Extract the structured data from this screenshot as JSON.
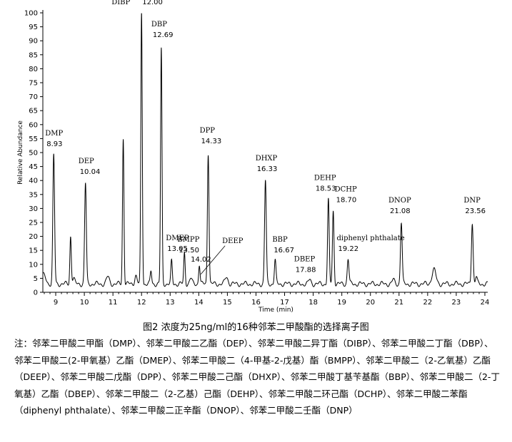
{
  "chart_data": {
    "type": "line",
    "xlabel": "Time (min)",
    "ylabel": "Relative Abundance",
    "xlim": [
      8.55,
      24.1
    ],
    "ylim": [
      0,
      100
    ],
    "xticks": [
      9,
      10,
      11,
      12,
      13,
      14,
      15,
      16,
      17,
      18,
      19,
      20,
      21,
      22,
      23,
      24
    ],
    "yticks": [
      0,
      5,
      10,
      15,
      20,
      25,
      30,
      35,
      40,
      45,
      50,
      55,
      60,
      65,
      70,
      75,
      80,
      85,
      90,
      95,
      100
    ],
    "grid": false,
    "baseline": 3,
    "peaks": [
      {
        "x": 8.93,
        "y": 49,
        "width": 0.03
      },
      {
        "x": 9.52,
        "y": 20,
        "width": 0.025
      },
      {
        "x": 9.62,
        "y": 5,
        "width": 0.04
      },
      {
        "x": 10.04,
        "y": 39,
        "width": 0.03
      },
      {
        "x": 10.82,
        "y": 5.5,
        "width": 0.05
      },
      {
        "x": 11.36,
        "y": 55,
        "width": 0.025
      },
      {
        "x": 11.8,
        "y": 6,
        "width": 0.04
      },
      {
        "x": 12.0,
        "y": 100,
        "width": 0.025
      },
      {
        "x": 12.33,
        "y": 7.5,
        "width": 0.025
      },
      {
        "x": 12.69,
        "y": 87,
        "width": 0.025
      },
      {
        "x": 13.05,
        "y": 11,
        "width": 0.025
      },
      {
        "x": 13.5,
        "y": 14,
        "width": 0.025
      },
      {
        "x": 13.72,
        "y": 5,
        "width": 0.04
      },
      {
        "x": 14.02,
        "y": 10,
        "width": 0.025
      },
      {
        "x": 14.33,
        "y": 50,
        "width": 0.028
      },
      {
        "x": 14.97,
        "y": 5.5,
        "width": 0.05
      },
      {
        "x": 16.33,
        "y": 40,
        "width": 0.03
      },
      {
        "x": 16.67,
        "y": 11.5,
        "width": 0.028
      },
      {
        "x": 17.88,
        "y": 4.5,
        "width": 0.04
      },
      {
        "x": 18.53,
        "y": 33,
        "width": 0.028
      },
      {
        "x": 18.7,
        "y": 29,
        "width": 0.028
      },
      {
        "x": 19.22,
        "y": 12,
        "width": 0.03
      },
      {
        "x": 20.8,
        "y": 4.5,
        "width": 0.04
      },
      {
        "x": 21.08,
        "y": 25,
        "width": 0.03
      },
      {
        "x": 22.22,
        "y": 8,
        "width": 0.07
      },
      {
        "x": 23.56,
        "y": 25,
        "width": 0.03
      },
      {
        "x": 23.7,
        "y": 5.5,
        "width": 0.03
      }
    ],
    "annotations": [
      {
        "name": "DMP",
        "rt": "8.93",
        "x": 8.93,
        "y": 49
      },
      {
        "name": "DEP",
        "rt": "10.04",
        "x": 10.04,
        "y": 39
      },
      {
        "name": "DIBP",
        "rt": "12.00",
        "x": 12.0,
        "y": 100
      },
      {
        "name": "DBP",
        "rt": "12.69",
        "x": 12.69,
        "y": 87
      },
      {
        "name": "DMEP",
        "rt": "13.05",
        "x": 13.05,
        "y": 11
      },
      {
        "name": "BMPP",
        "rt": "13.50",
        "x": 13.5,
        "y": 14
      },
      {
        "name": "",
        "rt": "14.02",
        "x": 14.02,
        "y": 10
      },
      {
        "name": "DPP",
        "rt": "14.33",
        "x": 14.33,
        "y": 50
      },
      {
        "name": "DEEP",
        "rt": "",
        "x": 14.02,
        "y": 10
      },
      {
        "name": "DHXP",
        "rt": "16.33",
        "x": 16.33,
        "y": 40
      },
      {
        "name": "BBP",
        "rt": "16.67",
        "x": 16.67,
        "y": 11.5
      },
      {
        "name": "DBEP",
        "rt": "17.88",
        "x": 17.88,
        "y": 4.5
      },
      {
        "name": "DEHP",
        "rt": "18.53",
        "x": 18.53,
        "y": 33
      },
      {
        "name": "DCHP",
        "rt": "18.70",
        "x": 18.7,
        "y": 29
      },
      {
        "name": "diphenyl phthalate",
        "rt": "19.22",
        "x": 19.22,
        "y": 12
      },
      {
        "name": "DNOP",
        "rt": "21.08",
        "x": 21.08,
        "y": 25
      },
      {
        "name": "DNP",
        "rt": "23.56",
        "x": 23.56,
        "y": 25
      }
    ]
  },
  "figure": {
    "caption": "图2 浓度为25ng/ml的16种邻苯二甲酸酯的选择离子图",
    "note": "注：邻苯二甲酸二甲酯（DMP）、邻苯二甲酸二乙酯（DEP）、邻苯二甲酸二异丁酯（DIBP）、邻苯二甲酸二丁酯（DBP）、邻苯二甲酸二(2-甲氧基）乙酯（DMEP）、邻苯二甲酸二（4-甲基-2-戊基）酯（BMPP）、邻苯二甲酸二（2-乙氧基）乙酯（DEEP）、邻苯二甲酸二戊酯（DPP）、邻苯二甲酸二己酯（DHXP）、邻苯二甲酸丁基苄基酯（BBP）、邻苯二甲酸二（2-丁氧基）乙酯（DBEP）、邻苯二甲酸二（2-乙基）己酯（DEHP）、邻苯二甲酸二环己酯（DCHP）、邻苯二甲酸二苯酯（diphenyl phthalate）、邻苯二甲酸二正辛酯（DNOP）、邻苯二甲酸二壬酯（DNP）"
  }
}
